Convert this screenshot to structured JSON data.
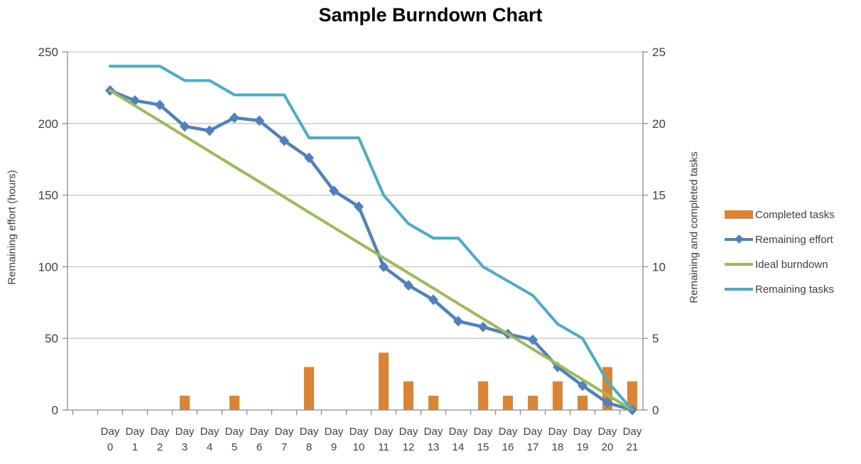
{
  "title": "Sample Burndown Chart",
  "colors": {
    "background": "#FFFFFF",
    "grid": "#C6C6C6",
    "axis": "#8C8C8C",
    "text": "#3F3F3F",
    "title": "#000000",
    "bar_orange": "#DC8434",
    "effort_blue": "#4F81BD",
    "ideal_green": "#9BBB59",
    "tasks_teal": "#4BACC6"
  },
  "chart_data": {
    "type": "combo (bar + line, dual axis)",
    "title": "Sample Burndown Chart",
    "categories": [
      "Day 0",
      "Day 1",
      "Day 2",
      "Day 3",
      "Day 4",
      "Day 5",
      "Day 6",
      "Day 7",
      "Day 8",
      "Day 9",
      "Day 10",
      "Day 11",
      "Day 12",
      "Day 13",
      "Day 14",
      "Day 15",
      "Day 16",
      "Day 17",
      "Day 18",
      "Day 19",
      "Day 20",
      "Day 21"
    ],
    "left_axis": {
      "label": "Remaining effort (hours)",
      "min": 0,
      "max": 250,
      "step": 50,
      "ticks": [
        0,
        50,
        100,
        150,
        200,
        250
      ]
    },
    "right_axis": {
      "label": "Remaining and  completed tasks",
      "min": 0,
      "max": 25,
      "step": 5,
      "ticks": [
        0,
        5,
        10,
        15,
        20,
        25
      ]
    },
    "grid": true,
    "legend_position": "right",
    "series": [
      {
        "name": "Completed tasks",
        "type": "bar",
        "axis": "right",
        "color": "#DC8434",
        "values": [
          0,
          0,
          0,
          1,
          0,
          1,
          0,
          0,
          3,
          0,
          0,
          4,
          2,
          1,
          0,
          2,
          1,
          1,
          2,
          1,
          3,
          2
        ]
      },
      {
        "name": "Remaining effort",
        "type": "line",
        "marker": "diamond",
        "axis": "left",
        "color": "#4F81BD",
        "values": [
          223,
          216,
          213,
          198,
          195,
          204,
          202,
          188,
          176,
          153,
          142,
          100,
          87,
          77,
          62,
          58,
          53,
          49,
          30,
          17,
          5,
          0
        ]
      },
      {
        "name": "Ideal burndown",
        "type": "line",
        "axis": "left",
        "color": "#9BBB59",
        "values": [
          223,
          212.4,
          201.8,
          191.1,
          180.5,
          169.9,
          159.3,
          148.7,
          138,
          127.4,
          116.8,
          106.2,
          95.6,
          85,
          74.3,
          63.7,
          53.1,
          42.5,
          31.9,
          21.2,
          10.6,
          0
        ]
      },
      {
        "name": "Remaining tasks",
        "type": "line",
        "axis": "right",
        "color": "#4BACC6",
        "values": [
          24,
          24,
          24,
          23,
          23,
          22,
          22,
          22,
          19,
          19,
          19,
          15,
          13,
          12,
          12,
          10,
          9,
          8,
          6,
          5,
          2,
          0
        ]
      }
    ]
  }
}
